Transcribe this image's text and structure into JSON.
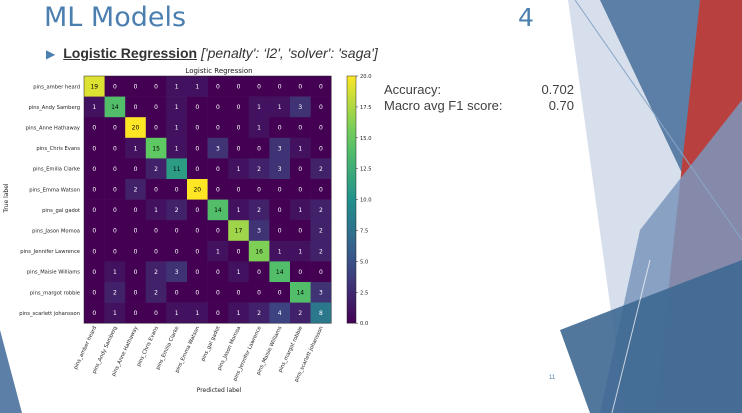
{
  "slide": {
    "title": "ML Models",
    "number_top": "4",
    "number_footer": "11"
  },
  "subtitle": {
    "model": "Logistic Regression",
    "params": "['penalty': ‘l2', 'solver': 'saga']"
  },
  "metrics": [
    {
      "label": "Accuracy:",
      "value": "0.702"
    },
    {
      "label": "Macro avg F1 score:",
      "value": "0.70"
    }
  ],
  "colors": {
    "accent": "#4a7fb0",
    "deco_blue": "#5b7fa6",
    "deco_red": "#b8403f"
  },
  "chart_data": {
    "type": "heatmap",
    "title": "Logistic Regression",
    "xlabel": "Predicted label",
    "ylabel": "True label",
    "labels": [
      "pins_amber heard",
      "pins_Andy Samberg",
      "pins_Anne Hathaway",
      "pins_Chris Evans",
      "pins_Emilia Clarke",
      "pins_Emma Watson",
      "pins_gal gadot",
      "pins_Jason Momoa",
      "pins_Jennifer Lawrence",
      "pins_Maisie Williams",
      "pins_margot robbie",
      "pins_scarlett johansson"
    ],
    "matrix": [
      [
        19,
        0,
        0,
        0,
        1,
        1,
        0,
        0,
        0,
        0,
        0,
        0
      ],
      [
        1,
        14,
        0,
        0,
        1,
        0,
        0,
        0,
        1,
        1,
        3,
        0
      ],
      [
        0,
        0,
        20,
        0,
        1,
        0,
        0,
        0,
        1,
        0,
        0,
        0
      ],
      [
        0,
        0,
        1,
        15,
        1,
        0,
        3,
        0,
        0,
        3,
        1,
        0
      ],
      [
        0,
        0,
        0,
        2,
        11,
        0,
        0,
        1,
        2,
        3,
        0,
        2
      ],
      [
        0,
        0,
        2,
        0,
        0,
        20,
        0,
        0,
        0,
        0,
        0,
        0
      ],
      [
        0,
        0,
        0,
        1,
        2,
        0,
        14,
        1,
        2,
        0,
        1,
        2
      ],
      [
        0,
        0,
        0,
        0,
        0,
        0,
        0,
        17,
        3,
        0,
        0,
        2
      ],
      [
        0,
        0,
        0,
        0,
        0,
        0,
        1,
        0,
        16,
        1,
        1,
        2
      ],
      [
        0,
        1,
        0,
        2,
        3,
        0,
        0,
        1,
        0,
        14,
        0,
        0
      ],
      [
        0,
        2,
        0,
        2,
        0,
        0,
        0,
        0,
        0,
        0,
        14,
        3
      ],
      [
        0,
        1,
        0,
        0,
        1,
        1,
        0,
        1,
        2,
        4,
        2,
        8
      ]
    ],
    "vmin": 0,
    "vmax": 20,
    "colormap": "viridis",
    "colorbar_ticks": [
      "0.0",
      "2.5",
      "5.0",
      "7.5",
      "10.0",
      "12.5",
      "15.0",
      "17.5",
      "20.0"
    ]
  }
}
